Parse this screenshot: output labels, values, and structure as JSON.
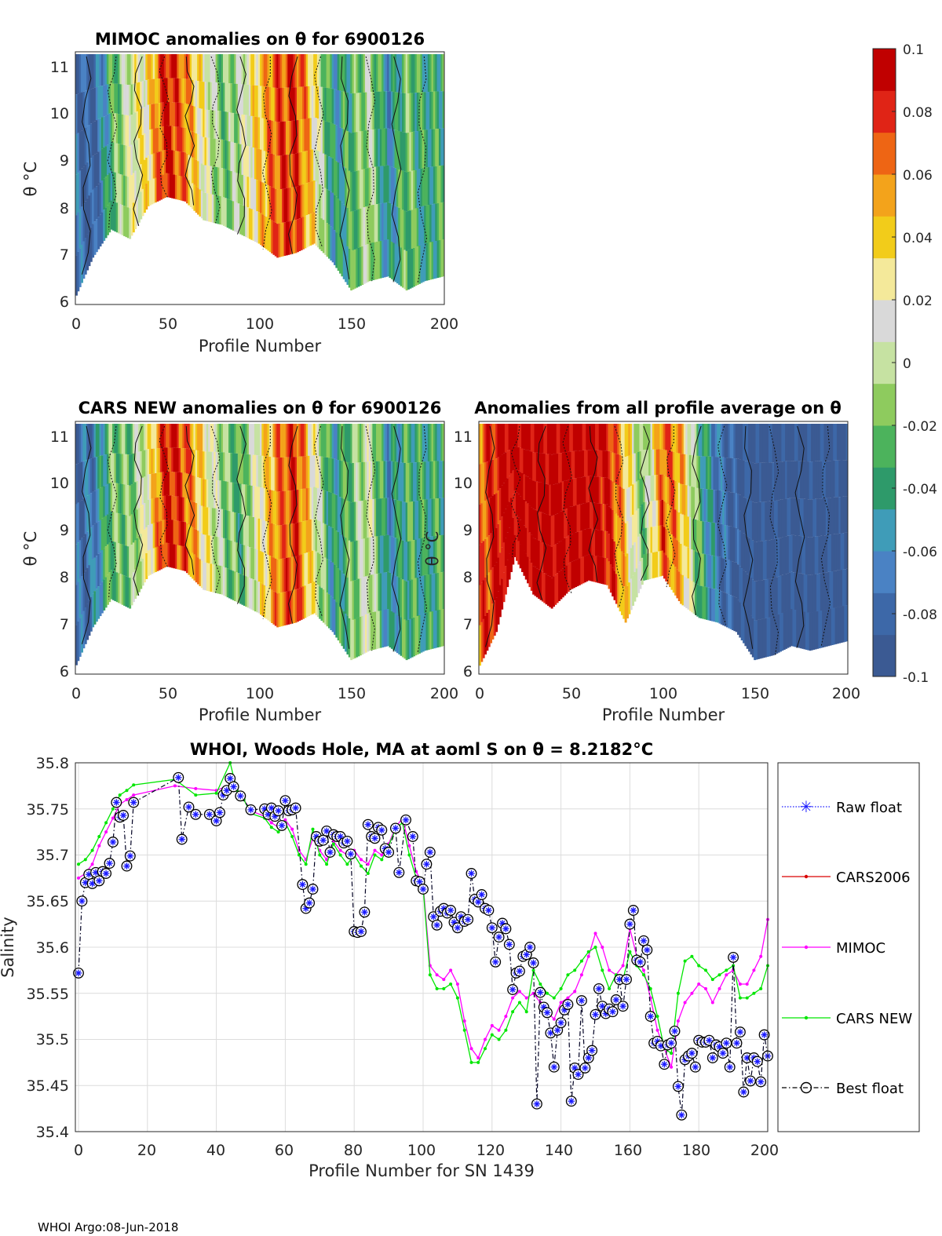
{
  "colors": {
    "colormap": [
      "#3b5a93",
      "#3d68a8",
      "#4a82c4",
      "#3f9cb8",
      "#2e9a6a",
      "#4cb35c",
      "#8ecb5e",
      "#c6e2a2",
      "#d9d9d9",
      "#f4e99a",
      "#f2cc1a",
      "#f3a31b",
      "#ee6514",
      "#e02416",
      "#c00000"
    ],
    "raw_float": "#1a1aff",
    "cars2006": "#d90000",
    "mimoc": "#ff00ff",
    "cars_new": "#00e600",
    "best_float": "#000022"
  },
  "colorbar": {
    "min": -0.1,
    "max": 0.1,
    "tick_labels": [
      "0.1",
      "0.08",
      "0.06",
      "0.04",
      "0.02",
      "0",
      "-0.02",
      "-0.04",
      "-0.06",
      "-0.08",
      "-0.1"
    ]
  },
  "panel_mimoc": {
    "title": "MIMOC anomalies on θ  for 6900126",
    "xlabel": "Profile Number",
    "ylabel": "θ °C",
    "xticks": [
      "0",
      "50",
      "100",
      "150",
      "200"
    ],
    "yticks": [
      "11",
      "10",
      "9",
      "8",
      "7",
      "6"
    ],
    "xlim": [
      0,
      200
    ],
    "ylim": [
      5.9,
      11.3
    ],
    "field": {
      "x": [
        0,
        10,
        20,
        30,
        40,
        50,
        60,
        70,
        80,
        90,
        100,
        110,
        120,
        130,
        140,
        150,
        160,
        170,
        180,
        190,
        200
      ],
      "anomaly": [
        -0.07,
        -0.09,
        -0.03,
        0.01,
        0.03,
        0.09,
        0.06,
        0.02,
        -0.02,
        0.0,
        0.04,
        0.07,
        0.08,
        0.03,
        -0.05,
        -0.03,
        0.0,
        -0.06,
        -0.02,
        -0.04,
        -0.03
      ],
      "theta_min": [
        6.0,
        6.9,
        7.5,
        7.3,
        8.0,
        8.2,
        8.1,
        7.7,
        7.6,
        7.4,
        7.2,
        6.9,
        7.0,
        7.2,
        6.8,
        6.2,
        6.4,
        6.5,
        6.2,
        6.4,
        6.5
      ]
    }
  },
  "panel_cars": {
    "title": "CARS NEW anomalies on θ for 6900126",
    "xlabel": "Profile Number",
    "ylabel": "θ °C",
    "xticks": [
      "0",
      "50",
      "100",
      "150",
      "200"
    ],
    "yticks": [
      "11",
      "10",
      "9",
      "8",
      "7",
      "6"
    ],
    "xlim": [
      0,
      200
    ],
    "ylim": [
      5.9,
      11.3
    ],
    "field": {
      "x": [
        0,
        10,
        20,
        30,
        40,
        50,
        60,
        70,
        80,
        90,
        100,
        110,
        120,
        130,
        140,
        150,
        160,
        170,
        180,
        190,
        200
      ],
      "anomaly": [
        -0.08,
        -0.07,
        -0.02,
        -0.02,
        0.02,
        0.09,
        0.07,
        0.03,
        -0.01,
        -0.03,
        0.02,
        0.06,
        0.08,
        0.02,
        -0.05,
        -0.02,
        0.01,
        -0.06,
        -0.03,
        -0.04,
        -0.03
      ],
      "theta_min": [
        6.0,
        6.9,
        7.5,
        7.3,
        8.0,
        8.2,
        8.1,
        7.7,
        7.6,
        7.4,
        7.2,
        6.9,
        7.0,
        7.2,
        6.8,
        6.2,
        6.4,
        6.5,
        6.2,
        6.4,
        6.5
      ]
    }
  },
  "panel_avg": {
    "title": "Anomalies from all profile average on θ",
    "xlabel": "Profile Number",
    "ylabel": "θ °C",
    "xticks": [
      "0",
      "50",
      "100",
      "150",
      "200"
    ],
    "yticks": [
      "11",
      "10",
      "9",
      "8",
      "7",
      "6"
    ],
    "xlim": [
      0,
      200
    ],
    "ylim": [
      5.9,
      11.3
    ],
    "field": {
      "x": [
        0,
        10,
        20,
        30,
        40,
        50,
        60,
        70,
        80,
        90,
        100,
        110,
        120,
        130,
        140,
        150,
        160,
        170,
        180,
        190,
        200
      ],
      "anomaly": [
        0.06,
        0.09,
        0.1,
        0.1,
        0.1,
        0.1,
        0.1,
        0.09,
        0.04,
        -0.02,
        0.07,
        0.05,
        -0.03,
        -0.07,
        -0.09,
        -0.1,
        -0.1,
        -0.1,
        -0.1,
        -0.1,
        -0.1
      ],
      "theta_min": [
        6.0,
        6.8,
        8.4,
        7.6,
        7.3,
        7.7,
        7.9,
        7.8,
        7.0,
        7.9,
        8.0,
        7.4,
        7.1,
        7.0,
        6.8,
        6.2,
        6.3,
        6.5,
        6.4,
        6.5,
        6.6
      ]
    }
  },
  "chart_data": {
    "type": "line",
    "title": "WHOI, Woods Hole, MA at aoml S on θ = 8.2182°C",
    "xlabel": "Profile Number for SN 1439",
    "ylabel": "Salinity",
    "xlim": [
      0,
      200
    ],
    "ylim": [
      35.4,
      35.8
    ],
    "grid": true,
    "legend_position": "outside-right",
    "xticks": [
      "0",
      "20",
      "40",
      "60",
      "80",
      "100",
      "120",
      "140",
      "160",
      "180",
      "200"
    ],
    "yticks": [
      "35.8",
      "35.75",
      "35.7",
      "35.65",
      "35.6",
      "35.55",
      "35.5",
      "35.45",
      "35.4"
    ],
    "legend": [
      "Raw float",
      "CARS2006",
      "MIMOC",
      "CARS NEW",
      "Best float"
    ],
    "series": [
      {
        "name": "Best float",
        "x": [
          0,
          1,
          2,
          3,
          4,
          5,
          6,
          7,
          8,
          9,
          10,
          11,
          12,
          13,
          14,
          15,
          16,
          29,
          30,
          32,
          34,
          38,
          40,
          41,
          42,
          43,
          44,
          45,
          47,
          50,
          54,
          55,
          56,
          57,
          58,
          59,
          60,
          61,
          62,
          63,
          65,
          66,
          67,
          68,
          69,
          70,
          71,
          72,
          73,
          74,
          75,
          76,
          77,
          78,
          79,
          80,
          81,
          82,
          83,
          84,
          85,
          86,
          87,
          88,
          89,
          90,
          92,
          93,
          95,
          97,
          98,
          99,
          100,
          101,
          102,
          103,
          104,
          105,
          106,
          107,
          108,
          109,
          110,
          111,
          112,
          113,
          114,
          115,
          116,
          117,
          118,
          119,
          120,
          121,
          122,
          123,
          124,
          125,
          126,
          127,
          128,
          129,
          130,
          131,
          132,
          133,
          134,
          135,
          136,
          137,
          138,
          139,
          140,
          141,
          142,
          143,
          144,
          145,
          146,
          147,
          148,
          149,
          150,
          151,
          152,
          153,
          154,
          155,
          156,
          157,
          158,
          159,
          160,
          161,
          162,
          163,
          164,
          165,
          166,
          167,
          168,
          169,
          170,
          171,
          172,
          173,
          174,
          175,
          176,
          177,
          178,
          179,
          180,
          181,
          182,
          183,
          184,
          185,
          186,
          187,
          188,
          189,
          190,
          191,
          192,
          193,
          194,
          195,
          196,
          197,
          198,
          199,
          200
        ],
        "y": [
          35.572,
          35.65,
          35.67,
          35.679,
          35.669,
          35.681,
          35.672,
          35.682,
          35.68,
          35.691,
          35.714,
          35.757,
          35.741,
          35.743,
          35.688,
          35.699,
          35.757,
          35.784,
          35.717,
          35.752,
          35.744,
          35.744,
          35.737,
          35.746,
          35.765,
          35.77,
          35.783,
          35.774,
          35.764,
          35.749,
          35.75,
          35.744,
          35.751,
          35.742,
          35.748,
          35.732,
          35.759,
          35.748,
          35.749,
          35.751,
          35.668,
          35.642,
          35.648,
          35.663,
          35.72,
          35.715,
          35.716,
          35.726,
          35.703,
          35.722,
          35.72,
          35.72,
          35.713,
          35.715,
          35.701,
          35.617,
          35.616,
          35.617,
          35.638,
          35.733,
          35.72,
          35.718,
          35.73,
          35.727,
          35.707,
          35.703,
          35.729,
          35.681,
          35.738,
          35.72,
          35.672,
          35.671,
          35.663,
          35.69,
          35.703,
          35.633,
          35.624,
          35.639,
          35.642,
          35.637,
          35.64,
          35.627,
          35.621,
          35.633,
          35.628,
          35.63,
          35.68,
          35.652,
          35.649,
          35.657,
          35.642,
          35.64,
          35.621,
          35.584,
          35.611,
          35.626,
          35.62,
          35.603,
          35.554,
          35.572,
          35.574,
          35.59,
          35.592,
          35.6,
          35.583,
          35.43,
          35.551,
          35.535,
          35.529,
          35.507,
          35.47,
          35.51,
          35.518,
          35.532,
          35.538,
          35.433,
          35.469,
          35.462,
          35.542,
          35.469,
          35.48,
          35.488,
          35.527,
          35.555,
          35.536,
          35.528,
          35.533,
          35.53,
          35.543,
          35.565,
          35.536,
          35.565,
          35.625,
          35.64,
          35.586,
          35.584,
          35.607,
          35.597,
          35.525,
          35.496,
          35.498,
          35.493,
          35.473,
          35.494,
          35.496,
          35.509,
          35.449,
          35.418,
          35.478,
          35.482,
          35.485,
          35.47,
          35.499,
          35.497,
          35.497,
          35.499,
          35.48,
          35.494,
          35.492,
          35.485,
          35.496,
          35.47,
          35.589,
          35.496,
          35.508,
          35.443,
          35.48,
          35.455,
          35.48,
          35.476,
          35.454,
          35.505,
          35.482
        ]
      },
      {
        "name": "MIMOC",
        "x": [
          0,
          2,
          4,
          6,
          8,
          10,
          12,
          14,
          16,
          28,
          34,
          40,
          44,
          46,
          48,
          50,
          54,
          56,
          58,
          60,
          62,
          64,
          66,
          68,
          70,
          72,
          74,
          76,
          78,
          80,
          82,
          84,
          86,
          88,
          90,
          92,
          94,
          96,
          98,
          100,
          102,
          104,
          106,
          108,
          110,
          112,
          114,
          116,
          118,
          120,
          122,
          124,
          126,
          128,
          130,
          132,
          134,
          136,
          138,
          140,
          142,
          144,
          146,
          148,
          150,
          152,
          154,
          156,
          158,
          160,
          162,
          164,
          166,
          168,
          170,
          172,
          174,
          176,
          178,
          180,
          182,
          184,
          186,
          188,
          190,
          192,
          194,
          196,
          198,
          200
        ],
        "y": [
          35.675,
          35.68,
          35.69,
          35.71,
          35.725,
          35.74,
          35.755,
          35.76,
          35.765,
          35.775,
          35.772,
          35.77,
          35.776,
          35.77,
          35.76,
          35.748,
          35.742,
          35.735,
          35.73,
          35.738,
          35.728,
          35.705,
          35.695,
          35.718,
          35.705,
          35.695,
          35.715,
          35.705,
          35.7,
          35.705,
          35.695,
          35.69,
          35.705,
          35.7,
          35.712,
          35.73,
          35.74,
          35.71,
          35.682,
          35.668,
          35.58,
          35.57,
          35.565,
          35.575,
          35.56,
          35.52,
          35.49,
          35.48,
          35.5,
          35.515,
          35.51,
          35.525,
          35.545,
          35.552,
          35.545,
          35.55,
          35.54,
          35.53,
          35.522,
          35.54,
          35.545,
          35.552,
          35.57,
          35.59,
          35.615,
          35.6,
          35.575,
          35.57,
          35.58,
          35.62,
          35.59,
          35.575,
          35.545,
          35.51,
          35.49,
          35.47,
          35.52,
          35.54,
          35.55,
          35.56,
          35.555,
          35.54,
          35.555,
          35.57,
          35.575,
          35.56,
          35.56,
          35.575,
          35.59,
          35.63
        ]
      },
      {
        "name": "CARS NEW",
        "x": [
          0,
          2,
          4,
          6,
          8,
          10,
          12,
          14,
          16,
          28,
          34,
          40,
          44,
          46,
          48,
          50,
          54,
          56,
          58,
          60,
          62,
          64,
          66,
          68,
          70,
          72,
          74,
          76,
          78,
          80,
          82,
          84,
          86,
          88,
          90,
          92,
          94,
          96,
          98,
          100,
          102,
          104,
          106,
          108,
          110,
          112,
          114,
          116,
          118,
          120,
          122,
          124,
          126,
          128,
          130,
          132,
          134,
          136,
          138,
          140,
          142,
          144,
          146,
          148,
          150,
          152,
          154,
          156,
          158,
          160,
          162,
          164,
          166,
          168,
          170,
          172,
          174,
          176,
          178,
          180,
          182,
          184,
          186,
          188,
          190,
          192,
          194,
          196,
          198,
          200
        ],
        "y": [
          35.69,
          35.695,
          35.705,
          35.72,
          35.735,
          35.75,
          35.765,
          35.77,
          35.776,
          35.782,
          35.765,
          35.767,
          35.8,
          35.77,
          35.76,
          35.745,
          35.74,
          35.73,
          35.725,
          35.735,
          35.72,
          35.7,
          35.69,
          35.728,
          35.7,
          35.69,
          35.712,
          35.7,
          35.69,
          35.7,
          35.688,
          35.68,
          35.7,
          35.695,
          35.71,
          35.728,
          35.735,
          35.7,
          35.675,
          35.665,
          35.57,
          35.555,
          35.555,
          35.56,
          35.545,
          35.51,
          35.475,
          35.475,
          35.49,
          35.505,
          35.5,
          35.51,
          35.53,
          35.54,
          35.53,
          35.575,
          35.56,
          35.55,
          35.545,
          35.555,
          35.57,
          35.575,
          35.585,
          35.595,
          35.6,
          35.575,
          35.555,
          35.57,
          35.565,
          35.595,
          35.58,
          35.57,
          35.555,
          35.525,
          35.49,
          35.485,
          35.55,
          35.585,
          35.59,
          35.58,
          35.575,
          35.565,
          35.57,
          35.575,
          35.58,
          35.545,
          35.545,
          35.55,
          35.555,
          35.58
        ]
      }
    ]
  },
  "footer": "WHOI Argo:08-Jun-2018"
}
